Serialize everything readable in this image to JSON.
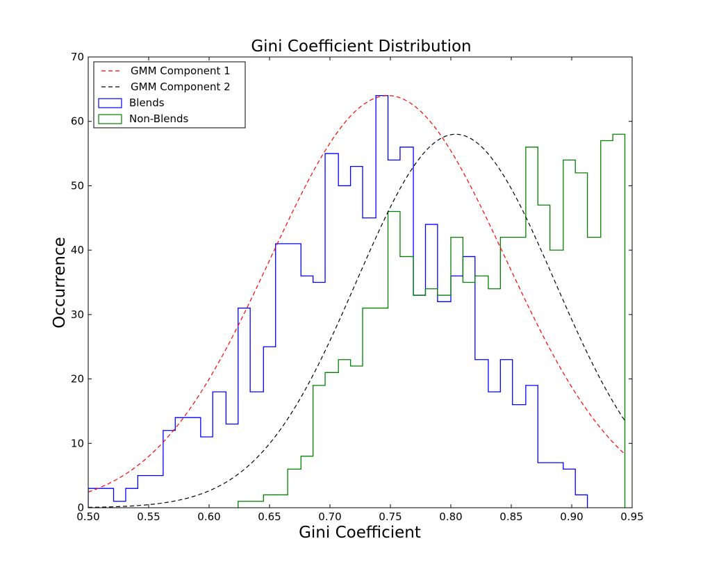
{
  "chart_data": {
    "type": "histogram",
    "title": "Gini Coefficient Distribution",
    "xlabel": "Gini Coefficient",
    "ylabel": "Occurrence",
    "xlim": [
      0.5,
      0.95
    ],
    "ylim": [
      0,
      70
    ],
    "xticks": [
      "0.50",
      "0.55",
      "0.60",
      "0.65",
      "0.70",
      "0.75",
      "0.80",
      "0.85",
      "0.90",
      "0.95"
    ],
    "yticks": [
      "0",
      "10",
      "20",
      "30",
      "40",
      "50",
      "60",
      "70"
    ],
    "grid": false,
    "legend_position": "top-left",
    "legend": [
      {
        "label": "GMM Component 1",
        "style": "dashed-line",
        "color": "#ff0000"
      },
      {
        "label": "GMM Component 2",
        "style": "dashed-line",
        "color": "#000000"
      },
      {
        "label": "Blends",
        "style": "step-patch",
        "color": "#0000ff"
      },
      {
        "label": "Non-Blends",
        "style": "step-patch",
        "color": "#008000"
      }
    ],
    "series": [
      {
        "name": "Blends",
        "kind": "step-histogram",
        "color": "#0000ff",
        "bin_edges": [
          0.5,
          0.521,
          0.531,
          0.541,
          0.562,
          0.572,
          0.593,
          0.603,
          0.614,
          0.624,
          0.634,
          0.645,
          0.655,
          0.676,
          0.686,
          0.696,
          0.707,
          0.717,
          0.727,
          0.738,
          0.748,
          0.758,
          0.769,
          0.779,
          0.789,
          0.8,
          0.81,
          0.82,
          0.831,
          0.841,
          0.851,
          0.862,
          0.872,
          0.893,
          0.903,
          0.913
        ],
        "counts": [
          3,
          1,
          3,
          5,
          12,
          14,
          11,
          18,
          13,
          31,
          18,
          25,
          41,
          36,
          35,
          55,
          50,
          53,
          45,
          64,
          54,
          56,
          33,
          44,
          32,
          36,
          39,
          23,
          18,
          23,
          16,
          19,
          7,
          6,
          2
        ]
      },
      {
        "name": "Non-Blends",
        "kind": "step-histogram",
        "color": "#008000",
        "bin_edges": [
          0.624,
          0.645,
          0.665,
          0.676,
          0.686,
          0.696,
          0.707,
          0.717,
          0.727,
          0.738,
          0.748,
          0.758,
          0.769,
          0.779,
          0.789,
          0.8,
          0.81,
          0.82,
          0.831,
          0.841,
          0.862,
          0.872,
          0.882,
          0.893,
          0.903,
          0.913,
          0.924,
          0.934,
          0.944
        ],
        "counts": [
          1,
          2,
          6,
          8,
          19,
          21,
          23,
          22,
          31,
          31,
          46,
          39,
          33,
          34,
          33,
          42,
          35,
          36,
          34,
          42,
          56,
          47,
          40,
          54,
          52,
          42,
          57,
          58
        ]
      },
      {
        "name": "GMM Component 1",
        "kind": "dashed-curve",
        "color": "#ff0000",
        "x_range": [
          0.5,
          0.944
        ],
        "peak": 64,
        "mean": 0.748,
        "sigma": 0.097
      },
      {
        "name": "GMM Component 2",
        "kind": "dashed-curve",
        "color": "#000000",
        "x_range": [
          0.5,
          0.944
        ],
        "peak": 58,
        "mean": 0.804,
        "sigma": 0.082
      }
    ]
  }
}
